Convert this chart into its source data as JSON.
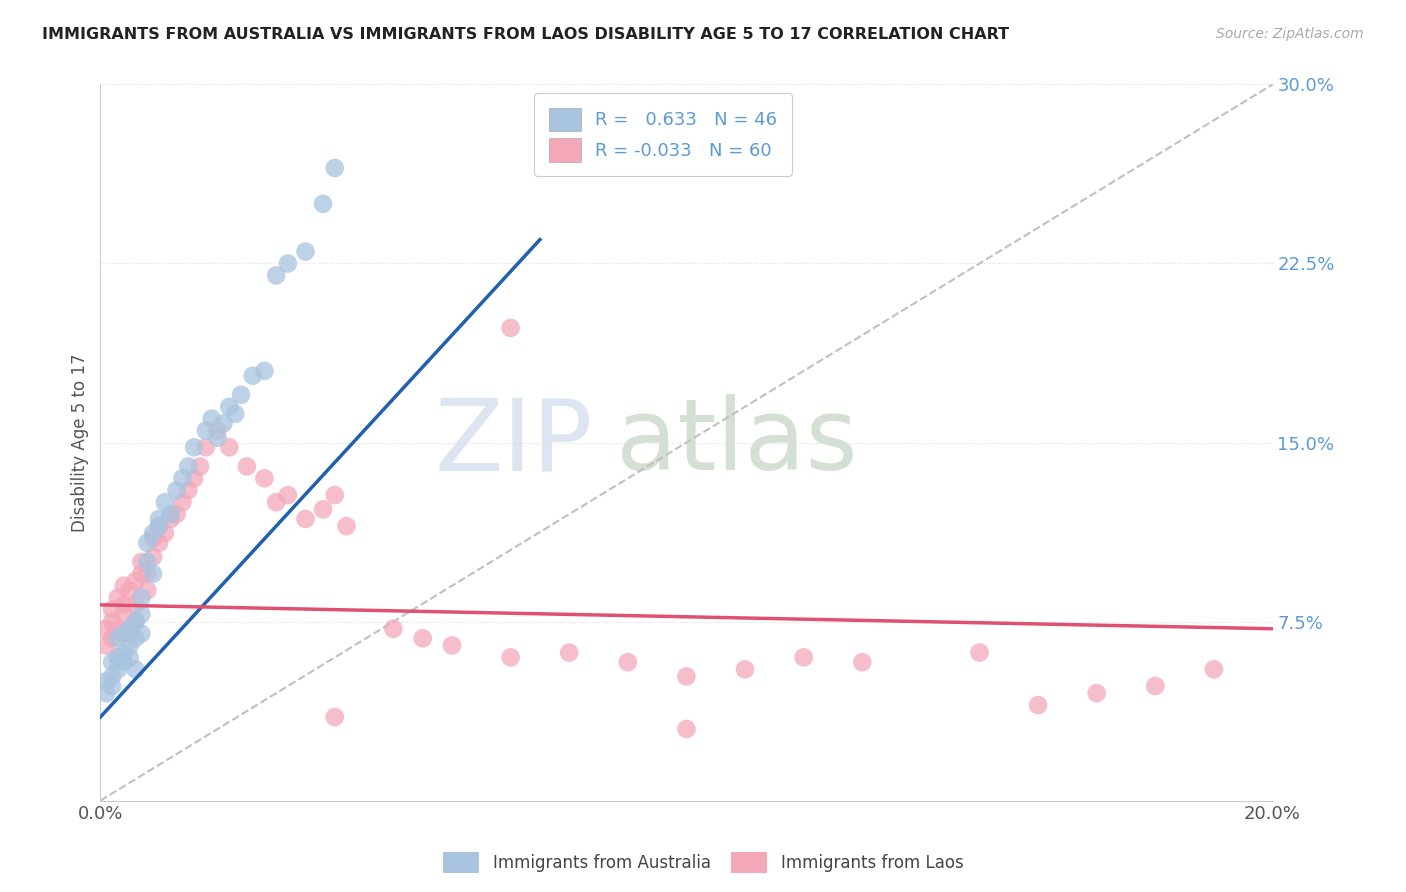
{
  "title": "IMMIGRANTS FROM AUSTRALIA VS IMMIGRANTS FROM LAOS DISABILITY AGE 5 TO 17 CORRELATION CHART",
  "source": "Source: ZipAtlas.com",
  "ylabel": "Disability Age 5 to 17",
  "xmin": 0.0,
  "xmax": 0.2,
  "ymin": 0.0,
  "ymax": 0.3,
  "australia_color": "#a8c4e0",
  "laos_color": "#f4a7b9",
  "australia_line_color": "#2060b0",
  "laos_line_color": "#e05070",
  "dashed_line_color": "#c0c0c0",
  "aus_R": 0.633,
  "aus_N": 46,
  "laos_R": -0.033,
  "laos_N": 60,
  "australia_x": [
    0.001,
    0.001,
    0.002,
    0.002,
    0.002,
    0.003,
    0.003,
    0.003,
    0.004,
    0.004,
    0.004,
    0.005,
    0.005,
    0.005,
    0.006,
    0.006,
    0.006,
    0.007,
    0.007,
    0.007,
    0.008,
    0.008,
    0.009,
    0.009,
    0.01,
    0.01,
    0.011,
    0.012,
    0.013,
    0.014,
    0.015,
    0.016,
    0.018,
    0.019,
    0.02,
    0.021,
    0.022,
    0.023,
    0.024,
    0.026,
    0.028,
    0.03,
    0.032,
    0.035,
    0.038,
    0.04
  ],
  "australia_y": [
    0.045,
    0.05,
    0.048,
    0.052,
    0.058,
    0.055,
    0.06,
    0.068,
    0.058,
    0.062,
    0.07,
    0.065,
    0.072,
    0.06,
    0.068,
    0.075,
    0.055,
    0.07,
    0.078,
    0.085,
    0.1,
    0.108,
    0.112,
    0.095,
    0.115,
    0.118,
    0.125,
    0.12,
    0.13,
    0.135,
    0.14,
    0.148,
    0.155,
    0.16,
    0.152,
    0.158,
    0.165,
    0.162,
    0.17,
    0.178,
    0.18,
    0.22,
    0.225,
    0.23,
    0.25,
    0.265
  ],
  "laos_x": [
    0.001,
    0.001,
    0.002,
    0.002,
    0.002,
    0.003,
    0.003,
    0.003,
    0.004,
    0.004,
    0.004,
    0.005,
    0.005,
    0.006,
    0.006,
    0.006,
    0.007,
    0.007,
    0.008,
    0.008,
    0.009,
    0.009,
    0.01,
    0.01,
    0.011,
    0.012,
    0.013,
    0.014,
    0.015,
    0.016,
    0.017,
    0.018,
    0.02,
    0.022,
    0.025,
    0.028,
    0.03,
    0.032,
    0.035,
    0.038,
    0.04,
    0.042,
    0.05,
    0.055,
    0.06,
    0.07,
    0.08,
    0.09,
    0.1,
    0.11,
    0.12,
    0.13,
    0.15,
    0.16,
    0.17,
    0.18,
    0.19,
    0.07,
    0.04,
    0.1
  ],
  "laos_y": [
    0.065,
    0.072,
    0.068,
    0.075,
    0.08,
    0.06,
    0.072,
    0.085,
    0.078,
    0.082,
    0.09,
    0.07,
    0.088,
    0.075,
    0.082,
    0.092,
    0.095,
    0.1,
    0.088,
    0.095,
    0.102,
    0.11,
    0.108,
    0.115,
    0.112,
    0.118,
    0.12,
    0.125,
    0.13,
    0.135,
    0.14,
    0.148,
    0.155,
    0.148,
    0.14,
    0.135,
    0.125,
    0.128,
    0.118,
    0.122,
    0.128,
    0.115,
    0.072,
    0.068,
    0.065,
    0.06,
    0.062,
    0.058,
    0.052,
    0.055,
    0.06,
    0.058,
    0.062,
    0.04,
    0.045,
    0.048,
    0.055,
    0.198,
    0.035,
    0.03
  ],
  "aus_line_x0": 0.0,
  "aus_line_y0": 0.035,
  "aus_line_x1": 0.075,
  "aus_line_y1": 0.235,
  "laos_line_x0": 0.0,
  "laos_line_y0": 0.082,
  "laos_line_x1": 0.2,
  "laos_line_y1": 0.072
}
